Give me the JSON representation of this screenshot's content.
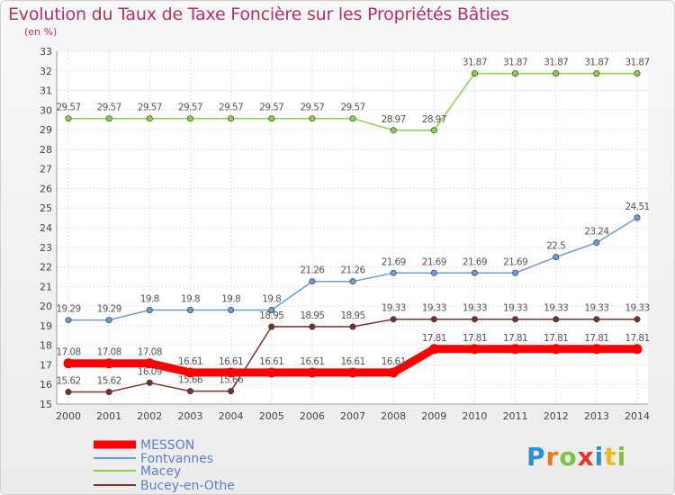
{
  "header": {
    "title": "Evolution du Taux de Taxe Foncière sur les Propriétés Bâties",
    "subtitle": "(en %)"
  },
  "logo": {
    "text": "Proxiti",
    "letters": [
      "P",
      "r",
      "o",
      "x",
      "i",
      "t",
      "i"
    ]
  },
  "chart_data": {
    "type": "line",
    "title": "Evolution du Taux de Taxe Foncière sur les Propriétés Bâties",
    "subtitle": "(en %)",
    "xlabel": "",
    "ylabel": "",
    "x": [
      "2000",
      "2001",
      "2002",
      "2003",
      "2004",
      "2005",
      "2006",
      "2007",
      "2008",
      "2009",
      "2010",
      "2011",
      "2012",
      "2013",
      "2014"
    ],
    "ylim": [
      15,
      33
    ],
    "yticks": [
      15,
      16,
      17,
      18,
      19,
      20,
      21,
      22,
      23,
      24,
      25,
      26,
      27,
      28,
      29,
      30,
      31,
      32,
      33
    ],
    "grid": true,
    "legend_position": "bottom-left",
    "series": [
      {
        "name": "MESSON",
        "color": "#ff0000",
        "values": [
          17.08,
          17.08,
          17.08,
          16.61,
          16.61,
          16.61,
          16.61,
          16.61,
          16.61,
          17.81,
          17.81,
          17.81,
          17.81,
          17.81,
          17.81
        ],
        "labels": [
          "17.08",
          "17.08",
          "17.08",
          "16.61",
          "16.61",
          "16.61",
          "16.61",
          "16.61",
          "16.61",
          "17.81",
          "17.81",
          "17.81",
          "17.81",
          "17.81",
          "17.81"
        ]
      },
      {
        "name": "Fontvannes",
        "color": "#6a9bd4",
        "values": [
          19.29,
          19.29,
          19.8,
          19.8,
          19.8,
          19.8,
          21.26,
          21.26,
          21.69,
          21.69,
          21.69,
          21.69,
          22.5,
          23.24,
          24.51
        ],
        "labels": [
          "19.29",
          "19.29",
          "19.8",
          "19.8",
          "19.8",
          "19.8",
          "21.26",
          "21.26",
          "21.69",
          "21.69",
          "21.69",
          "21.69",
          "22.5",
          "23.24",
          "24.51"
        ]
      },
      {
        "name": "Macey",
        "color": "#88d048",
        "values": [
          29.57,
          29.57,
          29.57,
          29.57,
          29.57,
          29.57,
          29.57,
          29.57,
          28.97,
          28.97,
          31.87,
          31.87,
          31.87,
          31.87,
          31.87
        ],
        "labels": [
          "29.57",
          "29.57",
          "29.57",
          "29.57",
          "29.57",
          "29.57",
          "29.57",
          "29.57",
          "28.97",
          "28.97",
          "31.87",
          "31.87",
          "31.87",
          "31.87",
          "31.87"
        ]
      },
      {
        "name": "Bucey-en-Othe",
        "color": "#7a3030",
        "values": [
          15.62,
          15.62,
          16.09,
          15.66,
          15.66,
          18.95,
          18.95,
          18.95,
          19.33,
          19.33,
          19.33,
          19.33,
          19.33,
          19.33,
          19.33
        ],
        "labels": [
          "15.62",
          "15.62",
          "16.09",
          "15.66",
          "15.66",
          "18.95",
          "18.95",
          "18.95",
          "19.33",
          "19.33",
          "19.33",
          "19.33",
          "19.33",
          "19.33",
          "19.33"
        ]
      }
    ]
  }
}
